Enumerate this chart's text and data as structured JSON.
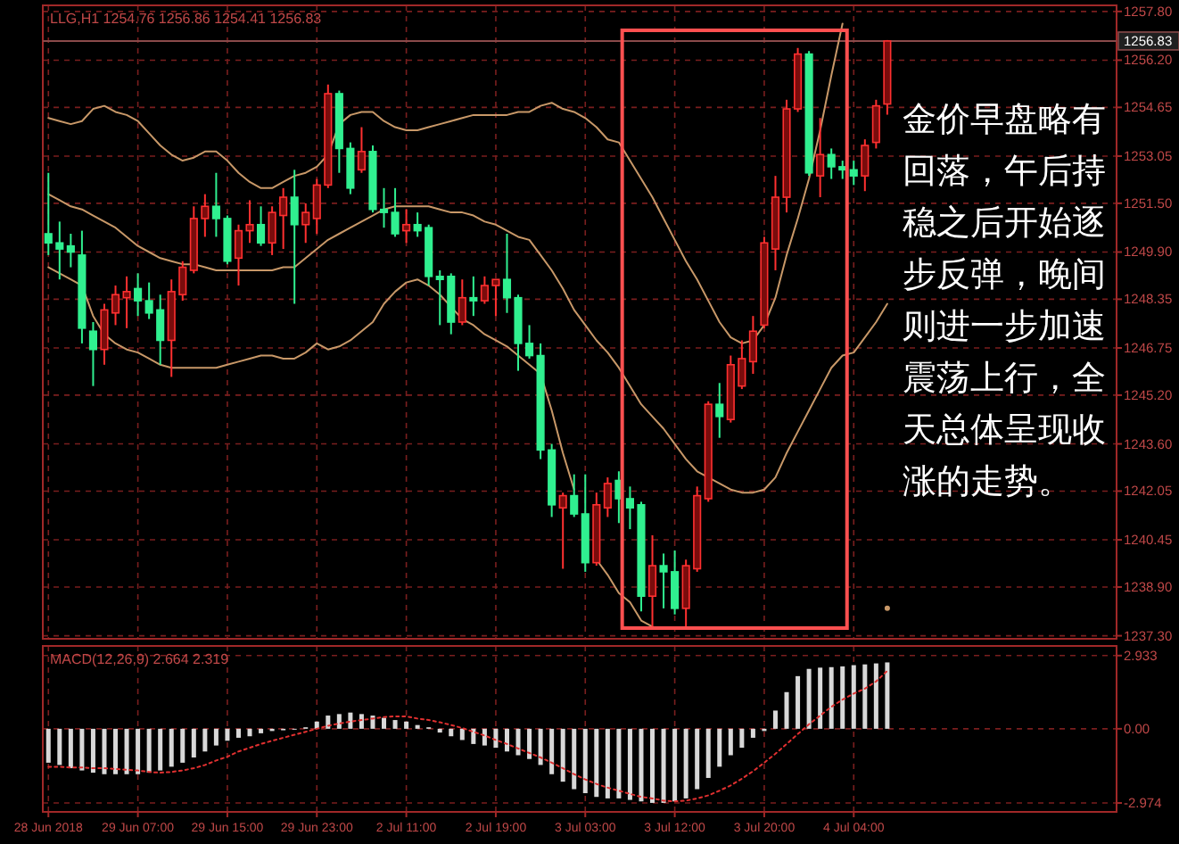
{
  "chart_data": [
    {
      "type": "candlestick",
      "title": "LLG,H1 1254.76 1256.86 1254.41 1256.83",
      "grid": true,
      "categories": [
        null,
        null,
        null,
        null,
        null,
        null,
        null,
        null,
        null,
        null,
        null,
        null,
        null,
        null,
        null,
        null,
        null,
        null,
        null,
        null,
        null,
        null,
        null,
        null,
        null,
        null,
        null,
        null,
        null,
        null,
        null,
        null,
        null,
        null,
        null,
        null,
        null,
        null,
        null,
        null,
        null,
        null,
        null,
        null,
        null,
        null,
        null,
        null,
        null,
        null,
        null,
        null,
        null,
        null,
        null,
        null,
        null,
        null,
        null,
        null,
        null,
        null,
        null,
        null,
        null,
        null,
        null,
        null,
        null,
        null,
        null,
        null,
        null,
        null,
        null,
        null,
        null,
        null,
        null,
        null,
        null,
        null,
        null,
        null,
        null,
        null,
        null,
        null,
        null,
        null,
        null,
        null,
        null,
        null,
        null,
        null
      ],
      "ohlc": [
        [
          1250.5,
          1252.5,
          1249.8,
          1250.2
        ],
        [
          1250.2,
          1250.9,
          1249.0,
          1250.0
        ],
        [
          1250.1,
          1250.5,
          1249.4,
          1249.9
        ],
        [
          1249.8,
          1250.6,
          1246.9,
          1247.4
        ],
        [
          1247.3,
          1247.6,
          1245.5,
          1246.7
        ],
        [
          1246.7,
          1248.2,
          1246.2,
          1248.0
        ],
        [
          1247.9,
          1248.8,
          1247.5,
          1248.5
        ],
        [
          1248.4,
          1249.1,
          1247.4,
          1248.6
        ],
        [
          1248.7,
          1249.2,
          1247.8,
          1248.3
        ],
        [
          1248.3,
          1248.9,
          1247.7,
          1247.9
        ],
        [
          1248.0,
          1248.5,
          1246.2,
          1247.0
        ],
        [
          1247.0,
          1249.0,
          1245.8,
          1248.6
        ],
        [
          1248.5,
          1249.6,
          1248.3,
          1249.4
        ],
        [
          1249.3,
          1251.4,
          1249.2,
          1251.0
        ],
        [
          1251.0,
          1251.8,
          1250.4,
          1251.4
        ],
        [
          1251.4,
          1252.5,
          1250.4,
          1251.0
        ],
        [
          1251.0,
          1251.1,
          1249.5,
          1249.6
        ],
        [
          1249.7,
          1250.8,
          1248.8,
          1250.6
        ],
        [
          1250.6,
          1251.6,
          1250.2,
          1250.8
        ],
        [
          1250.8,
          1251.4,
          1250.1,
          1250.2
        ],
        [
          1250.2,
          1251.4,
          1249.8,
          1251.2
        ],
        [
          1251.1,
          1252.0,
          1250.0,
          1251.7
        ],
        [
          1251.7,
          1252.6,
          1248.2,
          1250.8
        ],
        [
          1250.8,
          1251.5,
          1250.2,
          1251.2
        ],
        [
          1251.0,
          1252.3,
          1250.5,
          1252.1
        ],
        [
          1252.1,
          1255.4,
          1252.0,
          1255.1
        ],
        [
          1255.1,
          1255.2,
          1252.5,
          1253.3
        ],
        [
          1253.3,
          1253.5,
          1251.8,
          1252.0
        ],
        [
          1252.6,
          1254.0,
          1252.5,
          1253.2
        ],
        [
          1253.2,
          1253.4,
          1251.2,
          1251.3
        ],
        [
          1251.3,
          1252.0,
          1250.7,
          1251.2
        ],
        [
          1251.2,
          1252.0,
          1250.4,
          1250.5
        ],
        [
          1250.6,
          1251.3,
          1250.2,
          1250.8
        ],
        [
          1250.8,
          1251.2,
          1250.4,
          1250.6
        ],
        [
          1250.7,
          1250.8,
          1248.8,
          1249.1
        ],
        [
          1249.1,
          1249.3,
          1247.5,
          1249.0
        ],
        [
          1249.1,
          1249.2,
          1247.2,
          1247.6
        ],
        [
          1247.6,
          1249.0,
          1247.5,
          1248.4
        ],
        [
          1248.4,
          1249.1,
          1247.8,
          1248.3
        ],
        [
          1248.3,
          1249.1,
          1248.2,
          1248.8
        ],
        [
          1248.8,
          1249.0,
          1247.8,
          1249.0
        ],
        [
          1249.0,
          1250.5,
          1247.9,
          1248.4
        ],
        [
          1248.4,
          1248.5,
          1246.0,
          1246.9
        ],
        [
          1246.9,
          1247.5,
          1246.4,
          1246.5
        ],
        [
          1246.5,
          1246.9,
          1243.1,
          1243.4
        ],
        [
          1243.4,
          1243.6,
          1241.2,
          1241.6
        ],
        [
          1241.5,
          1242.0,
          1239.5,
          1241.9
        ],
        [
          1241.9,
          1242.6,
          1241.2,
          1241.3
        ],
        [
          1241.3,
          1242.6,
          1239.4,
          1239.7
        ],
        [
          1239.7,
          1242.0,
          1239.6,
          1241.6
        ],
        [
          1241.5,
          1242.5,
          1241.2,
          1242.3
        ],
        [
          1242.4,
          1242.7,
          1241.0,
          1241.8
        ],
        [
          1241.8,
          1242.2,
          1240.8,
          1241.5
        ],
        [
          1241.6,
          1241.7,
          1238.1,
          1238.6
        ],
        [
          1238.6,
          1240.6,
          1237.6,
          1239.6
        ],
        [
          1239.6,
          1240.0,
          1238.2,
          1239.4
        ],
        [
          1239.4,
          1240.1,
          1238.0,
          1238.2
        ],
        [
          1238.2,
          1239.8,
          1237.6,
          1239.6
        ],
        [
          1239.5,
          1242.2,
          1239.4,
          1241.9
        ],
        [
          1241.8,
          1245.0,
          1241.7,
          1244.9
        ],
        [
          1244.9,
          1245.6,
          1243.8,
          1244.5
        ],
        [
          1244.4,
          1246.5,
          1244.3,
          1246.2
        ],
        [
          1245.5,
          1247.0,
          1245.4,
          1246.4
        ],
        [
          1246.3,
          1247.8,
          1245.9,
          1247.3
        ],
        [
          1247.5,
          1250.4,
          1247.4,
          1250.2
        ],
        [
          1250.0,
          1252.4,
          1249.3,
          1251.7
        ],
        [
          1251.7,
          1254.9,
          1251.2,
          1254.6
        ],
        [
          1254.6,
          1256.6,
          1254.5,
          1256.4
        ],
        [
          1256.4,
          1256.5,
          1252.4,
          1252.5
        ],
        [
          1252.4,
          1254.3,
          1251.7,
          1253.1
        ],
        [
          1253.1,
          1253.3,
          1252.3,
          1252.7
        ],
        [
          1252.7,
          1252.9,
          1252.3,
          1252.6
        ],
        [
          1252.6,
          1252.9,
          1252.1,
          1252.4
        ],
        [
          1252.4,
          1253.6,
          1251.9,
          1253.4
        ],
        [
          1253.5,
          1254.9,
          1253.3,
          1254.7
        ],
        [
          1254.76,
          1256.86,
          1254.41,
          1256.83
        ],
        null,
        null,
        null,
        null,
        null,
        null,
        null,
        null,
        null,
        null,
        null,
        null,
        null,
        null,
        null,
        null,
        null,
        null,
        null,
        null
      ],
      "series": [
        {
          "type": "line",
          "color": "#c89868",
          "values": [
            1254.3,
            1254.2,
            1254.1,
            1254.2,
            1254.6,
            1254.7,
            1254.5,
            1254.4,
            1254.2,
            1253.8,
            1253.4,
            1253.1,
            1252.9,
            1253.0,
            1253.2,
            1253.2,
            1252.9,
            1252.5,
            1252.2,
            1252.0,
            1252.0,
            1252.2,
            1252.4,
            1252.5,
            1252.7,
            1253.1,
            1254.1,
            1254.4,
            1254.5,
            1254.5,
            1254.2,
            1254.0,
            1253.9,
            1253.9,
            1254.0,
            1254.1,
            1254.2,
            1254.3,
            1254.4,
            1254.4,
            1254.4,
            1254.4,
            1254.5,
            1254.5,
            1254.7,
            1254.8,
            1254.6,
            1254.5,
            1254.3,
            1254.0,
            1253.6,
            1253.5,
            1252.9,
            1252.3,
            1251.7,
            1251.0,
            1250.3,
            1249.6,
            1249.0,
            1248.3,
            1247.6,
            1247.1,
            1246.9,
            1247.0,
            1247.5,
            1248.4,
            1249.8,
            1251.0,
            1252.3,
            1253.9,
            1255.7,
            1257.4,
            null,
            null,
            null,
            null,
            null,
            null,
            null,
            null,
            null,
            null,
            null,
            null,
            null,
            null,
            null,
            null,
            null,
            null,
            null,
            null,
            null,
            null,
            null,
            null
          ]
        },
        {
          "type": "line",
          "color": "#c89868",
          "values": [
            1251.8,
            1251.6,
            1251.4,
            1251.3,
            1251.1,
            1250.9,
            1250.7,
            1250.4,
            1250.1,
            1249.9,
            1249.7,
            1249.6,
            1249.5,
            1249.5,
            1249.4,
            1249.3,
            1249.3,
            1249.3,
            1249.3,
            1249.3,
            1249.3,
            1249.4,
            1249.4,
            1249.7,
            1250.0,
            1250.3,
            1250.5,
            1250.7,
            1250.9,
            1251.1,
            1251.3,
            1251.4,
            1251.4,
            1251.4,
            1251.4,
            1251.3,
            1251.2,
            1251.2,
            1251.1,
            1250.9,
            1250.8,
            1250.6,
            1250.4,
            1250.3,
            1249.8,
            1249.3,
            1248.7,
            1248.0,
            1247.5,
            1247.0,
            1246.6,
            1246.1,
            1245.5,
            1244.9,
            1244.5,
            1244.1,
            1243.6,
            1243.1,
            1242.7,
            1242.5,
            1242.3,
            1242.1,
            1242.0,
            1242.0,
            1242.1,
            1242.5,
            1243.3,
            1244.0,
            1244.7,
            1245.4,
            1246.1,
            1246.5,
            1246.6,
            1247.1,
            1247.6,
            1248.2,
            null,
            null,
            null,
            null,
            null,
            null,
            null,
            null,
            null,
            null,
            null,
            null,
            null,
            null,
            null,
            null,
            null,
            null,
            null,
            null
          ]
        },
        {
          "type": "line",
          "color": "#c89868",
          "values": [
            1249.4,
            1249.2,
            1249.0,
            1248.8,
            1247.8,
            1247.2,
            1246.9,
            1246.7,
            1246.6,
            1246.4,
            1246.2,
            1246.1,
            1246.1,
            1246.1,
            1246.1,
            1246.1,
            1246.2,
            1246.3,
            1246.4,
            1246.5,
            1246.5,
            1246.4,
            1246.4,
            1246.6,
            1246.9,
            1246.7,
            1246.8,
            1247.0,
            1247.3,
            1247.6,
            1248.2,
            1248.6,
            1248.9,
            1249.0,
            1248.8,
            1248.5,
            1248.1,
            1247.7,
            1247.5,
            1247.2,
            1247.0,
            1246.8,
            1246.5,
            1246.2,
            1245.9,
            1244.7,
            1243.3,
            1242.1,
            null,
            1239.8,
            1239.3,
            1238.7,
            1238.4,
            1237.8,
            1237.6,
            null,
            null,
            null,
            null,
            null,
            null,
            null,
            null,
            null,
            null,
            null,
            null,
            null,
            null,
            null,
            null,
            null,
            null,
            null,
            null,
            1238.2,
            null,
            null,
            null,
            null,
            null,
            null,
            null,
            null,
            null,
            null,
            null,
            null,
            null,
            null,
            null,
            null,
            null,
            null,
            null,
            null
          ]
        }
      ],
      "ylim": [
        1237.2,
        1258.0
      ],
      "yticks": [
        {
          "value": 1257.8,
          "label": "1257.80"
        },
        {
          "value": 1256.2,
          "label": "1256.20"
        },
        1254.65,
        1253.05,
        {
          "value": 1251.5,
          "label": "1251.50"
        },
        {
          "value": 1249.9,
          "label": "1249.90"
        },
        1248.35,
        1246.75,
        {
          "value": 1245.2,
          "label": "1245.20"
        },
        {
          "value": 1243.6,
          "label": "1243.60"
        },
        1242.05,
        1240.45,
        {
          "value": 1238.9,
          "label": "1238.90"
        },
        {
          "value": 1237.3,
          "label": "1237.30"
        }
      ],
      "ref_lines": [
        {
          "axis": "y",
          "value": 1256.83,
          "label": "1256.83",
          "color": "#8a4a4a"
        }
      ],
      "annotations": [
        "金价早盘略有回落，午后持稳之后开始逐步反弹，晚间则进一步加速震荡上行，全天总体呈现收涨的走势。"
      ]
    },
    {
      "type": "bar",
      "title": "MACD(12,26,9) 2.664 2.319",
      "grid": true,
      "categories": [
        "28 Jun 2018",
        null,
        null,
        null,
        null,
        null,
        null,
        null,
        "29 Jun 07:00",
        null,
        null,
        null,
        null,
        null,
        null,
        null,
        "29 Jun 15:00",
        null,
        null,
        null,
        null,
        null,
        null,
        null,
        "29 Jun 23:00",
        null,
        null,
        null,
        null,
        null,
        null,
        null,
        "2 Jul 11:00",
        null,
        null,
        null,
        null,
        null,
        null,
        null,
        "2 Jul 19:00",
        null,
        null,
        null,
        null,
        null,
        null,
        null,
        "3 Jul 03:00",
        null,
        null,
        null,
        null,
        null,
        null,
        null,
        "3 Jul 12:00",
        null,
        null,
        null,
        null,
        null,
        null,
        null,
        "3 Jul 20:00",
        null,
        null,
        null,
        null,
        null,
        null,
        null,
        "4 Jul 04:00",
        null,
        null,
        null,
        null,
        null,
        null,
        null,
        null,
        null,
        null,
        null,
        null,
        null,
        null,
        null,
        null,
        null,
        null,
        null,
        null,
        null,
        null,
        null
      ],
      "series": [
        {
          "type": "bar",
          "color": "#d8d8d8",
          "values": [
            -1.36,
            -1.45,
            -1.58,
            -1.67,
            -1.76,
            -1.82,
            -1.82,
            -1.82,
            -1.82,
            -1.76,
            -1.67,
            -1.52,
            -1.36,
            -1.15,
            -0.91,
            -0.67,
            -0.48,
            -0.36,
            -0.3,
            -0.18,
            -0.09,
            -0.06,
            -0.03,
            0.06,
            0.29,
            0.53,
            0.59,
            0.65,
            0.59,
            0.53,
            0.44,
            0.35,
            0.29,
            0.15,
            0.06,
            -0.15,
            -0.3,
            -0.45,
            -0.61,
            -0.67,
            -0.76,
            -0.91,
            -1.06,
            -1.21,
            -1.45,
            -1.82,
            -2.12,
            -2.42,
            -2.58,
            -2.73,
            -2.79,
            -2.79,
            -2.85,
            -2.91,
            -2.97,
            -2.97,
            -2.91,
            -2.79,
            -2.42,
            -1.97,
            -1.52,
            -1.06,
            -0.76,
            -0.36,
            -0.09,
            0.73,
            1.47,
            2.11,
            2.4,
            2.45,
            2.47,
            2.5,
            2.55,
            2.58,
            2.62,
            2.66,
            null,
            null,
            null,
            null,
            null,
            null,
            null,
            null,
            null,
            null,
            null,
            null,
            null,
            null,
            null,
            null,
            null,
            null,
            null,
            null
          ]
        },
        {
          "type": "line",
          "color": "#e03030",
          "line_style": "dotted",
          "values": [
            -1.52,
            -1.52,
            -1.55,
            -1.55,
            -1.58,
            -1.58,
            -1.61,
            -1.64,
            -1.67,
            -1.73,
            -1.76,
            -1.73,
            -1.67,
            -1.58,
            -1.45,
            -1.27,
            -1.12,
            -0.91,
            -0.76,
            -0.61,
            -0.48,
            -0.36,
            -0.24,
            -0.12,
            0,
            0.12,
            0.21,
            0.29,
            0.35,
            0.41,
            0.47,
            0.5,
            0.5,
            0.41,
            0.35,
            0.26,
            0.15,
            0.03,
            -0.12,
            -0.27,
            -0.45,
            -0.61,
            -0.79,
            -0.97,
            -1.15,
            -1.36,
            -1.58,
            -1.82,
            -2.03,
            -2.21,
            -2.36,
            -2.48,
            -2.61,
            -2.73,
            -2.79,
            -2.88,
            -2.91,
            -2.88,
            -2.79,
            -2.67,
            -2.48,
            -2.27,
            -2.0,
            -1.7,
            -1.36,
            -1.0,
            -0.61,
            -0.21,
            0.18,
            0.53,
            0.88,
            1.17,
            1.41,
            1.61,
            1.9,
            2.32,
            null,
            null,
            null,
            null,
            null,
            null,
            null,
            null,
            null,
            null,
            null,
            null,
            null,
            null,
            null,
            null,
            null,
            null,
            null,
            null
          ]
        }
      ],
      "ylim": [
        -3.33,
        3.32
      ],
      "yticks": [
        2.933,
        {
          "value": 0,
          "label": "0.00"
        },
        -2.974
      ]
    }
  ]
}
